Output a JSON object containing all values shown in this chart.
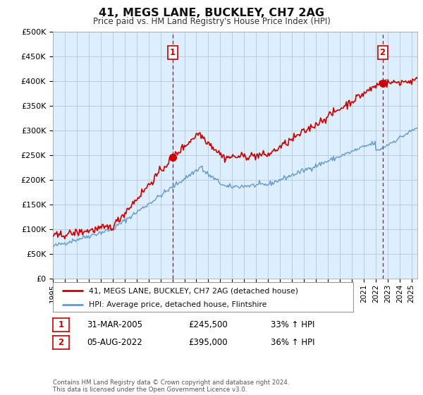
{
  "title": "41, MEGS LANE, BUCKLEY, CH7 2AG",
  "subtitle": "Price paid vs. HM Land Registry's House Price Index (HPI)",
  "ylabel_ticks": [
    "£0",
    "£50K",
    "£100K",
    "£150K",
    "£200K",
    "£250K",
    "£300K",
    "£350K",
    "£400K",
    "£450K",
    "£500K"
  ],
  "ytick_values": [
    0,
    50000,
    100000,
    150000,
    200000,
    250000,
    300000,
    350000,
    400000,
    450000,
    500000
  ],
  "xlim_start": 1995.0,
  "xlim_end": 2025.5,
  "ylim": [
    0,
    500000
  ],
  "purchase1_x": 2005.0,
  "purchase1_y": 245500,
  "purchase2_x": 2022.58,
  "purchase2_y": 395000,
  "vline1_x": 2005.0,
  "vline2_x": 2022.58,
  "legend_label_red": "41, MEGS LANE, BUCKLEY, CH7 2AG (detached house)",
  "legend_label_blue": "HPI: Average price, detached house, Flintshire",
  "table_row1": [
    "1",
    "31-MAR-2005",
    "£245,500",
    "33% ↑ HPI"
  ],
  "table_row2": [
    "2",
    "05-AUG-2022",
    "£395,000",
    "36% ↑ HPI"
  ],
  "footnote": "Contains HM Land Registry data © Crown copyright and database right 2024.\nThis data is licensed under the Open Government Licence v3.0.",
  "red_color": "#cc0000",
  "blue_color": "#6699cc",
  "chart_bg": "#ddeeff",
  "vline_color": "#cc0000",
  "background_color": "#ffffff",
  "grid_color": "#bbccdd",
  "xtick_years": [
    1995,
    1996,
    1997,
    1998,
    1999,
    2000,
    2001,
    2002,
    2003,
    2004,
    2005,
    2006,
    2007,
    2008,
    2009,
    2010,
    2011,
    2012,
    2013,
    2014,
    2015,
    2016,
    2017,
    2018,
    2019,
    2020,
    2021,
    2022,
    2023,
    2024,
    2025
  ]
}
